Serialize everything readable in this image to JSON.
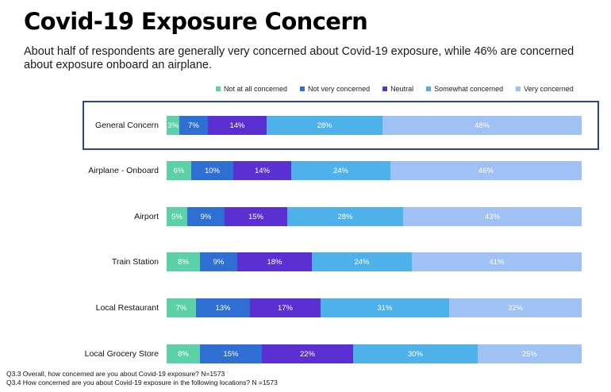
{
  "title": "Covid-19 Exposure Concern",
  "subtitle": "About half of respondents are generally very concerned about Covid-19 exposure, while 46% are concerned about exposure onboard an airplane.",
  "footnotes": [
    "Q3.3 Overall, how concerned are you about Covid-19 exposure? N=1573",
    "Q3.4 How concerned are you about Covid-19 exposure in the following locations? N =1573"
  ],
  "highlighted_category": "General Concern",
  "chart_data": {
    "type": "bar",
    "orientation": "horizontal",
    "stacked": true,
    "unit": "%",
    "categories": [
      "General Concern",
      "Airplane - Onboard",
      "Airport",
      "Train Station",
      "Local Restaurant",
      "Local Grocery Store"
    ],
    "series": [
      {
        "name": "Not at all concerned",
        "color": "#5cd1a8",
        "values": [
          3,
          6,
          5,
          8,
          7,
          8
        ]
      },
      {
        "name": "Not very concerned",
        "color": "#2f6fd4",
        "values": [
          7,
          10,
          9,
          9,
          13,
          15
        ]
      },
      {
        "name": "Neutral",
        "color": "#5a30d2",
        "values": [
          14,
          14,
          15,
          18,
          17,
          22
        ]
      },
      {
        "name": "Somewhat concerned",
        "color": "#4eb1ea",
        "values": [
          28,
          24,
          28,
          24,
          31,
          30
        ]
      },
      {
        "name": "Very concerned",
        "color": "#9fc1f4",
        "values": [
          48,
          46,
          43,
          41,
          32,
          25
        ]
      }
    ],
    "legend_position": "top",
    "grid": false
  }
}
